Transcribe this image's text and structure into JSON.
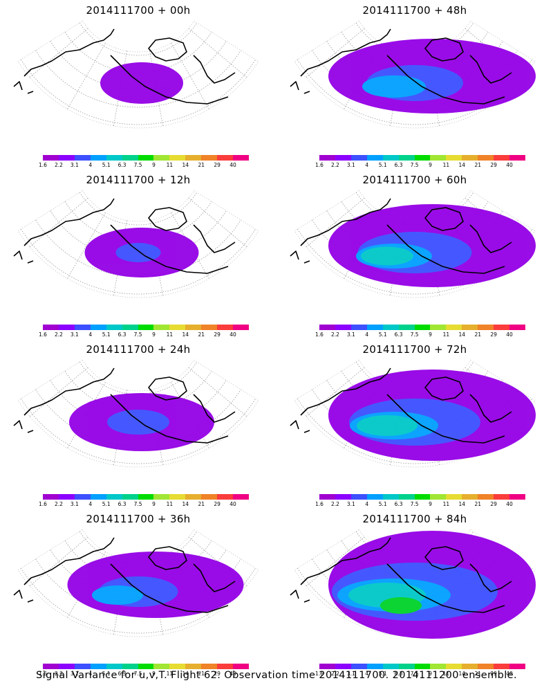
{
  "colorbar": {
    "colors": [
      "#a000d0",
      "#8c00ff",
      "#3c50ff",
      "#00a0ff",
      "#00c8c8",
      "#00d28c",
      "#00dc00",
      "#a0e632",
      "#e6dc32",
      "#e6af2d",
      "#f08228",
      "#fa3c3c",
      "#f00082"
    ],
    "labels": [
      "1.6",
      "2.2",
      "3.1",
      "4",
      "5.1",
      "6.3",
      "7.5",
      "9",
      "11",
      "14",
      "21",
      "29",
      "40"
    ]
  },
  "panels": [
    {
      "title": "2014111700 + 00h",
      "level": 0
    },
    {
      "title": "2014111700 + 48h",
      "level": 2
    },
    {
      "title": "2014111700 + 12h",
      "level": 0.5
    },
    {
      "title": "2014111700 + 60h",
      "level": 2.5
    },
    {
      "title": "2014111700 + 24h",
      "level": 1
    },
    {
      "title": "2014111700 + 72h",
      "level": 3
    },
    {
      "title": "2014111700 + 36h",
      "level": 1.5
    },
    {
      "title": "2014111700 + 84h",
      "level": 4
    }
  ],
  "caption": "Signal Variance for u,v,T. Flight 62. Observation time 2014111700. 2014111200 ensemble."
}
